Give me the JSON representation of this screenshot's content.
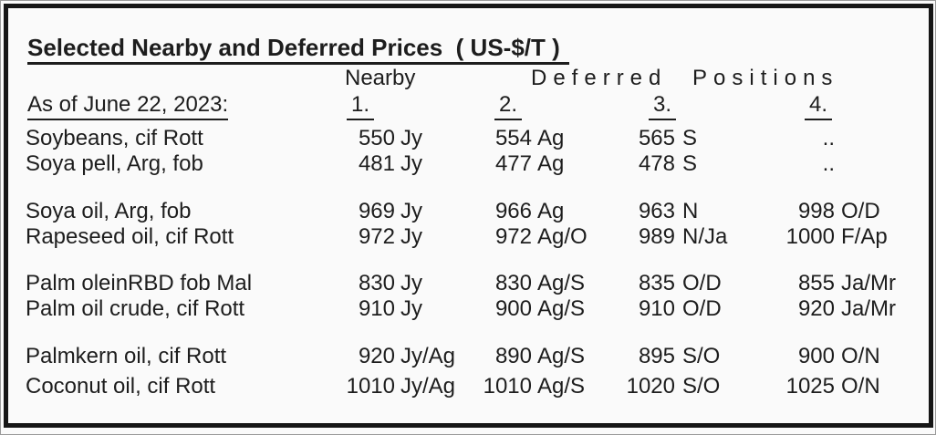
{
  "page": {
    "title": "Selected Nearby and Deferred Prices  ( US-$/T )"
  },
  "colors": {
    "frame": "#161616",
    "text": "#1d1d1d",
    "background": "#fafafa"
  },
  "table": {
    "nearby_header": "Nearby",
    "deferred_header": "Deferred Positions",
    "as_of_label": "As of June 22, 2023:",
    "col_numbers": [
      "1.",
      "2.",
      "3.",
      "4."
    ],
    "rows": [
      {
        "label": "Soybeans, cif Rott",
        "c1v": "550",
        "c1m": "Jy",
        "c2v": "554",
        "c2m": "Ag",
        "c3v": "565",
        "c3m": "S",
        "c4v": "..",
        "c4m": ""
      },
      {
        "label": "Soya pell, Arg, fob",
        "c1v": "481",
        "c1m": "Jy",
        "c2v": "477",
        "c2m": "Ag",
        "c3v": "478",
        "c3m": "S",
        "c4v": "..",
        "c4m": ""
      },
      {
        "label": "Soya oil, Arg, fob",
        "c1v": "969",
        "c1m": "Jy",
        "c2v": "966",
        "c2m": "Ag",
        "c3v": "963",
        "c3m": "N",
        "c4v": "998",
        "c4m": "O/D"
      },
      {
        "label": "Rapeseed oil, cif Rott",
        "c1v": "972",
        "c1m": "Jy",
        "c2v": "972",
        "c2m": "Ag/O",
        "c3v": "989",
        "c3m": "N/Ja",
        "c4v": "1000",
        "c4m": "F/Ap"
      },
      {
        "label": "Palm oleinRBD fob Mal",
        "c1v": "830",
        "c1m": "Jy",
        "c2v": "830",
        "c2m": "Ag/S",
        "c3v": "835",
        "c3m": "O/D",
        "c4v": "855",
        "c4m": "Ja/Mr"
      },
      {
        "label": "Palm oil crude, cif Rott",
        "c1v": "910",
        "c1m": "Jy",
        "c2v": "900",
        "c2m": "Ag/S",
        "c3v": "910",
        "c3m": "O/D",
        "c4v": "920",
        "c4m": "Ja/Mr"
      },
      {
        "label": "Palmkern oil, cif Rott",
        "c1v": "920",
        "c1m": "Jy/Ag",
        "c2v": "890",
        "c2m": "Ag/S",
        "c3v": "895",
        "c3m": "S/O",
        "c4v": "900",
        "c4m": "O/N"
      },
      {
        "label": "Coconut oil, cif Rott",
        "c1v": "1010",
        "c1m": "Jy/Ag",
        "c2v": "1010",
        "c2m": "Ag/S",
        "c3v": "1020",
        "c3m": "S/O",
        "c4v": "1025",
        "c4m": "O/N"
      }
    ]
  }
}
